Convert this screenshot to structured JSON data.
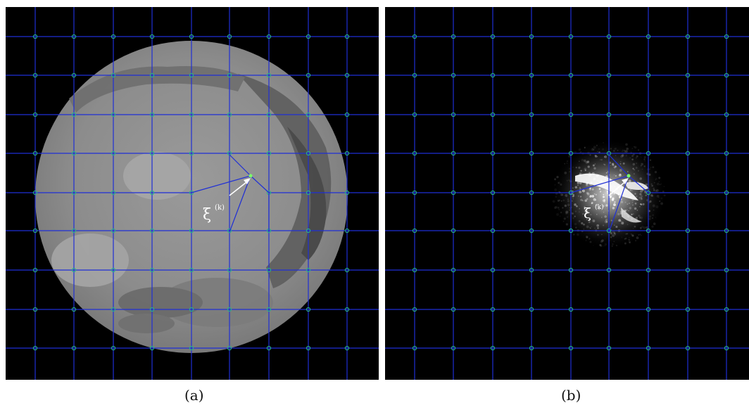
{
  "captions": {
    "a": "(a)",
    "b": "(b)"
  },
  "labels": {
    "xi": "ξ",
    "superscript": "(k)"
  },
  "colors": {
    "background": "#000000",
    "grid_line": "#1f2fd6",
    "control_point": "#27b08a",
    "arrow": "#ffffff",
    "moved_point": "#7bff6b",
    "ct_disc": "#8a8a8a"
  },
  "images": {
    "a": {
      "content": "CT slice (cardiac), circular field of view"
    },
    "b": {
      "content": "sparse speckle image, central bright region"
    }
  }
}
